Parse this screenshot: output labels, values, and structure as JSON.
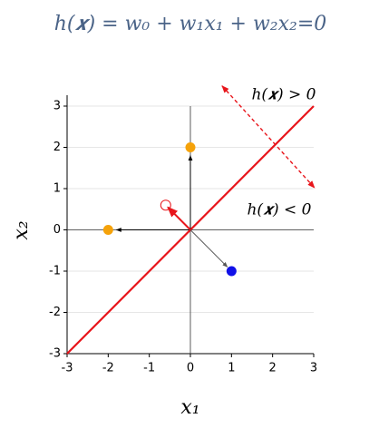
{
  "chart_data": {
    "type": "scatter",
    "title": "h(𝒙) = w₀ + w₁x₁ + w₂x₂=0",
    "x_label": "x₁",
    "y_label": "x₂",
    "annotations": [
      "h(𝒙) > 0",
      "h(𝒙) < 0"
    ],
    "xlim": [
      -3,
      3
    ],
    "ylim": [
      -3,
      3
    ],
    "xticks": [
      -3,
      -2,
      -1,
      0,
      1,
      2,
      3
    ],
    "yticks": [
      -3,
      -2,
      -1,
      0,
      1,
      2,
      3
    ],
    "grid": true,
    "line": {
      "color": "#e8151b",
      "x": [
        -3,
        3
      ],
      "values": [
        -3,
        3
      ]
    },
    "series": [
      {
        "color": "#f5a20a",
        "x": [
          0,
          -2
        ],
        "values": [
          2,
          0
        ],
        "hollow": false
      },
      {
        "color": "#1010e8",
        "x": [
          1
        ],
        "values": [
          -1
        ],
        "hollow": false
      },
      {
        "color": "#e8151b",
        "x": [
          -0.6
        ],
        "values": [
          0.6
        ],
        "hollow": true
      }
    ],
    "arrows": [
      {
        "from": [
          0,
          0
        ],
        "to": [
          0,
          1.8
        ],
        "color": "#000000",
        "dashed": false
      },
      {
        "from": [
          0,
          0
        ],
        "to": [
          -1.8,
          0
        ],
        "color": "#000000",
        "dashed": false
      },
      {
        "from": [
          0,
          0
        ],
        "to": [
          0.9,
          -0.9
        ],
        "color": "#555555",
        "dashed": false
      },
      {
        "from": [
          0,
          0
        ],
        "to": [
          -0.55,
          0.55
        ],
        "color": "#e8151b",
        "dashed": false
      },
      {
        "from": [
          0.77,
          3.49
        ],
        "to": [
          3.02,
          1.02
        ],
        "color": "#e8151b",
        "dashed": true
      }
    ]
  }
}
